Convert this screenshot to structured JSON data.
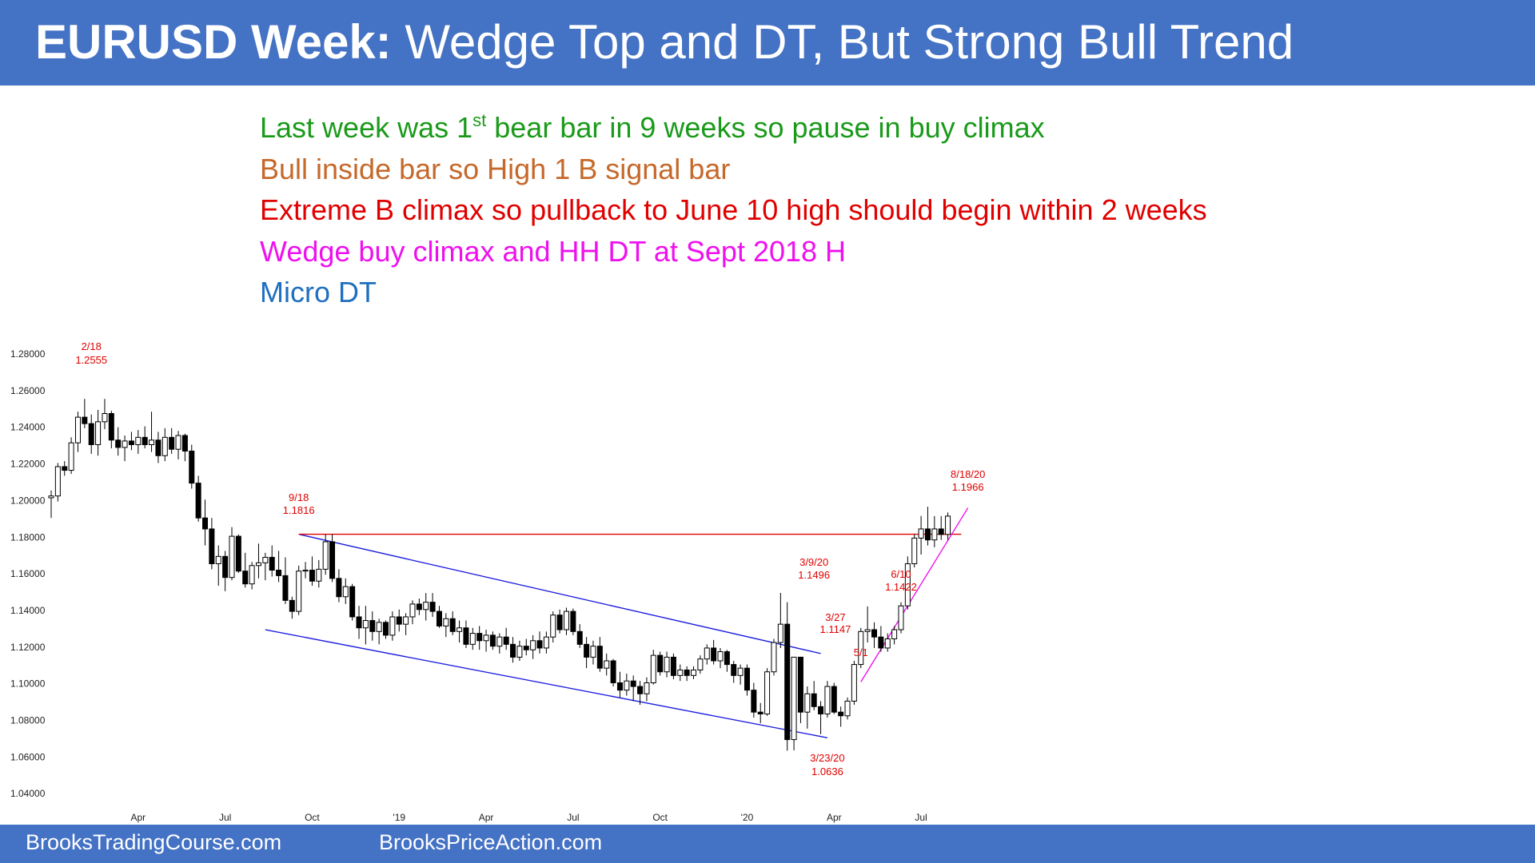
{
  "title": {
    "bold": "EURUSD Week:",
    "rest": " Wedge Top and DT, But Strong Bull Trend"
  },
  "notes": [
    {
      "text": "Last week was 1",
      "sup": "st",
      "after": " bear bar in 9 weeks so pause in buy climax",
      "color": "#1a9a1a"
    },
    {
      "text": "Bull inside bar so High 1 B signal bar",
      "color": "#c5682a"
    },
    {
      "text": "Extreme B climax so pullback to June 10 high should begin within 2 weeks",
      "color": "#e00000"
    },
    {
      "text": "Wedge buy climax and HH DT at Sept 2018 H",
      "color": "#ee11ee"
    },
    {
      "text": "Micro DT",
      "color": "#1f6fbf"
    }
  ],
  "footer": {
    "left": "BrooksTradingCourse.com",
    "right": "BrooksPriceAction.com"
  },
  "chart_data": {
    "type": "candlestick",
    "title": "",
    "x_axis": {
      "tick_labels": [
        "Apr",
        "Jul",
        "Oct",
        "'19",
        "Apr",
        "Jul",
        "Oct",
        "'20",
        "Apr",
        "Jul"
      ],
      "tick_weeks": [
        13,
        26,
        39,
        52,
        65,
        78,
        91,
        104,
        117,
        130
      ]
    },
    "y_axis": {
      "min": 1.03,
      "max": 1.285,
      "ticks": [
        "1.28000",
        "1.26000",
        "1.24000",
        "1.22000",
        "1.20000",
        "1.18000",
        "1.16000",
        "1.14000",
        "1.12000",
        "1.10000",
        "1.08000",
        "1.06000",
        "1.04000"
      ]
    },
    "annotations": [
      {
        "date": "2/18",
        "price": "1.2555",
        "week": 6,
        "value": 1.2555
      },
      {
        "date": "9/18",
        "price": "1.1816",
        "week": 37,
        "value": 1.1816
      },
      {
        "date": "3/9/20",
        "price": "1.1496",
        "week": 114,
        "value": 1.1496
      },
      {
        "date": "3/27",
        "price": "1.1147",
        "week": 116,
        "value": 1.1147
      },
      {
        "date": "5/1",
        "price": "",
        "week": 121,
        "value": 1.101
      },
      {
        "date": "6/10",
        "price": "1.1422",
        "week": 127,
        "value": 1.1422
      },
      {
        "date": "3/23/20",
        "price": "1.0636",
        "week": 116,
        "value": 1.0636
      },
      {
        "date": "8/18/20",
        "price": "1.1966",
        "week": 137,
        "value": 1.1966
      }
    ],
    "lines": [
      {
        "name": "channel-top",
        "color": "#2020e0",
        "from": [
          37,
          1.1816
        ],
        "to": [
          115,
          1.1165
        ]
      },
      {
        "name": "channel-bottom",
        "color": "#2020e0",
        "from": [
          32,
          1.1295
        ],
        "to": [
          116,
          1.0705
        ]
      },
      {
        "name": "resistance",
        "color": "#e00000",
        "from": [
          37,
          1.1816
        ],
        "to": [
          136,
          1.1816
        ]
      },
      {
        "name": "wedge-line",
        "color": "#ee11ee",
        "from": [
          121,
          1.101
        ],
        "to": [
          137,
          1.196
        ]
      }
    ],
    "candles": [
      [
        1.2015,
        1.2055,
        1.1905,
        1.2025
      ],
      [
        1.2025,
        1.2205,
        1.1995,
        1.2185
      ],
      [
        1.2185,
        1.2215,
        1.2135,
        1.2165
      ],
      [
        1.2165,
        1.2345,
        1.2145,
        1.2315
      ],
      [
        1.2315,
        1.2485,
        1.2265,
        1.2455
      ],
      [
        1.2455,
        1.2555,
        1.2395,
        1.242
      ],
      [
        1.242,
        1.247,
        1.2255,
        1.2305
      ],
      [
        1.2305,
        1.2495,
        1.2245,
        1.243
      ],
      [
        1.243,
        1.2555,
        1.239,
        1.2475
      ],
      [
        1.2475,
        1.249,
        1.2285,
        1.233
      ],
      [
        1.233,
        1.24,
        1.2245,
        1.229
      ],
      [
        1.229,
        1.2355,
        1.2215,
        1.2325
      ],
      [
        1.2325,
        1.2375,
        1.2275,
        1.2305
      ],
      [
        1.2305,
        1.2385,
        1.2255,
        1.2345
      ],
      [
        1.2345,
        1.2405,
        1.2285,
        1.2305
      ],
      [
        1.2305,
        1.2485,
        1.2265,
        1.233
      ],
      [
        1.233,
        1.2375,
        1.2205,
        1.2245
      ],
      [
        1.2245,
        1.2395,
        1.2215,
        1.2345
      ],
      [
        1.2345,
        1.2395,
        1.2255,
        1.228
      ],
      [
        1.228,
        1.238,
        1.2225,
        1.2355
      ],
      [
        1.2355,
        1.2365,
        1.2215,
        1.227
      ],
      [
        1.227,
        1.2305,
        1.2065,
        1.2095
      ],
      [
        1.2095,
        1.2135,
        1.1885,
        1.1905
      ],
      [
        1.1905,
        1.2005,
        1.1755,
        1.1845
      ],
      [
        1.1845,
        1.1905,
        1.1625,
        1.1655
      ],
      [
        1.1655,
        1.1755,
        1.1535,
        1.1695
      ],
      [
        1.1695,
        1.1725,
        1.1505,
        1.158
      ],
      [
        1.158,
        1.1855,
        1.1565,
        1.1805
      ],
      [
        1.1805,
        1.1815,
        1.1605,
        1.1615
      ],
      [
        1.1615,
        1.1715,
        1.1525,
        1.1545
      ],
      [
        1.1545,
        1.1665,
        1.1515,
        1.1645
      ],
      [
        1.1645,
        1.1765,
        1.1575,
        1.166
      ],
      [
        1.166,
        1.1715,
        1.1565,
        1.169
      ],
      [
        1.169,
        1.1755,
        1.1585,
        1.162
      ],
      [
        1.162,
        1.1725,
        1.1555,
        1.159
      ],
      [
        1.159,
        1.169,
        1.1435,
        1.1455
      ],
      [
        1.1455,
        1.1475,
        1.1355,
        1.1395
      ],
      [
        1.1395,
        1.1645,
        1.1375,
        1.1615
      ],
      [
        1.1615,
        1.1665,
        1.1575,
        1.162
      ],
      [
        1.162,
        1.1695,
        1.1535,
        1.156
      ],
      [
        1.156,
        1.1675,
        1.1525,
        1.1625
      ],
      [
        1.1625,
        1.1815,
        1.1595,
        1.1775
      ],
      [
        1.1775,
        1.1816,
        1.1555,
        1.1575
      ],
      [
        1.1575,
        1.1625,
        1.1445,
        1.1475
      ],
      [
        1.1475,
        1.1575,
        1.1435,
        1.153
      ],
      [
        1.153,
        1.1545,
        1.1345,
        1.1365
      ],
      [
        1.1365,
        1.1425,
        1.1245,
        1.1305
      ],
      [
        1.1305,
        1.1425,
        1.1215,
        1.1345
      ],
      [
        1.1345,
        1.1395,
        1.1235,
        1.1285
      ],
      [
        1.1285,
        1.1355,
        1.1215,
        1.1335
      ],
      [
        1.1335,
        1.1345,
        1.1245,
        1.1265
      ],
      [
        1.1265,
        1.1395,
        1.1235,
        1.1365
      ],
      [
        1.1365,
        1.1405,
        1.1285,
        1.1325
      ],
      [
        1.1325,
        1.1385,
        1.1265,
        1.1365
      ],
      [
        1.1365,
        1.1455,
        1.1325,
        1.1435
      ],
      [
        1.1435,
        1.1465,
        1.1375,
        1.1405
      ],
      [
        1.1405,
        1.1495,
        1.1345,
        1.1445
      ],
      [
        1.1445,
        1.1495,
        1.1365,
        1.1395
      ],
      [
        1.1395,
        1.1425,
        1.1305,
        1.1315
      ],
      [
        1.1315,
        1.1385,
        1.1255,
        1.1355
      ],
      [
        1.1355,
        1.1395,
        1.1265,
        1.1285
      ],
      [
        1.1285,
        1.1345,
        1.1225,
        1.1305
      ],
      [
        1.1305,
        1.1345,
        1.1195,
        1.1215
      ],
      [
        1.1215,
        1.1305,
        1.1185,
        1.1275
      ],
      [
        1.1275,
        1.1315,
        1.1185,
        1.1235
      ],
      [
        1.1235,
        1.1295,
        1.1175,
        1.1265
      ],
      [
        1.1265,
        1.1285,
        1.1185,
        1.1205
      ],
      [
        1.1205,
        1.1275,
        1.1165,
        1.1255
      ],
      [
        1.1255,
        1.1305,
        1.1185,
        1.1215
      ],
      [
        1.1215,
        1.1255,
        1.1115,
        1.1145
      ],
      [
        1.1145,
        1.1235,
        1.1125,
        1.1205
      ],
      [
        1.1205,
        1.1245,
        1.1155,
        1.1185
      ],
      [
        1.1185,
        1.1265,
        1.1135,
        1.1235
      ],
      [
        1.1235,
        1.1285,
        1.1165,
        1.1195
      ],
      [
        1.1195,
        1.1285,
        1.1165,
        1.1255
      ],
      [
        1.1255,
        1.1395,
        1.1225,
        1.1375
      ],
      [
        1.1375,
        1.1405,
        1.1275,
        1.1295
      ],
      [
        1.1295,
        1.1415,
        1.1265,
        1.1395
      ],
      [
        1.1395,
        1.141,
        1.1265,
        1.1285
      ],
      [
        1.1285,
        1.1325,
        1.1195,
        1.1215
      ],
      [
        1.1215,
        1.1255,
        1.1085,
        1.1145
      ],
      [
        1.1145,
        1.1235,
        1.1105,
        1.1205
      ],
      [
        1.1205,
        1.1255,
        1.1065,
        1.1085
      ],
      [
        1.1085,
        1.1165,
        1.1045,
        1.1125
      ],
      [
        1.1125,
        1.1135,
        1.0985,
        1.1005
      ],
      [
        1.1005,
        1.1065,
        1.0925,
        1.0965
      ],
      [
        1.0965,
        1.1055,
        1.0935,
        1.1015
      ],
      [
        1.1015,
        1.1045,
        1.0905,
        1.0985
      ],
      [
        1.0985,
        1.1015,
        1.0885,
        1.0945
      ],
      [
        1.0945,
        1.1035,
        1.0905,
        1.1005
      ],
      [
        1.1005,
        1.1185,
        1.0995,
        1.1155
      ],
      [
        1.1155,
        1.1175,
        1.1045,
        1.1065
      ],
      [
        1.1065,
        1.1175,
        1.1035,
        1.1145
      ],
      [
        1.1145,
        1.1165,
        1.1025,
        1.1045
      ],
      [
        1.1045,
        1.1105,
        1.1015,
        1.1075
      ],
      [
        1.1075,
        1.1095,
        1.1015,
        1.1045
      ],
      [
        1.1045,
        1.1095,
        1.1025,
        1.1075
      ],
      [
        1.1075,
        1.1155,
        1.1055,
        1.1135
      ],
      [
        1.1135,
        1.1215,
        1.1105,
        1.1195
      ],
      [
        1.1195,
        1.1239,
        1.1105,
        1.1125
      ],
      [
        1.1125,
        1.1195,
        1.1085,
        1.1175
      ],
      [
        1.1175,
        1.1185,
        1.1065,
        1.1105
      ],
      [
        1.1105,
        1.1125,
        1.1005,
        1.1045
      ],
      [
        1.1045,
        1.1105,
        1.0995,
        1.1085
      ],
      [
        1.1085,
        1.1105,
        1.0935,
        1.0965
      ],
      [
        1.0965,
        1.1005,
        1.0815,
        1.0845
      ],
      [
        1.0845,
        1.0895,
        1.0785,
        1.0835
      ],
      [
        1.0835,
        1.1085,
        1.0825,
        1.1065
      ],
      [
        1.1065,
        1.1245,
        1.1045,
        1.1225
      ],
      [
        1.1225,
        1.1496,
        1.1195,
        1.1325
      ],
      [
        1.1325,
        1.1445,
        1.0635,
        1.0695
      ],
      [
        1.0695,
        1.1147,
        1.0636,
        1.1145
      ],
      [
        1.1145,
        1.1147,
        1.0785,
        1.0845
      ],
      [
        1.0845,
        1.0985,
        1.0755,
        1.0945
      ],
      [
        1.0945,
        1.1015,
        1.0855,
        1.0875
      ],
      [
        1.0875,
        1.0905,
        1.0725,
        1.0835
      ],
      [
        1.0835,
        1.1015,
        1.0815,
        1.0985
      ],
      [
        1.0985,
        1.1005,
        1.0835,
        1.0845
      ],
      [
        1.0845,
        1.0875,
        1.0765,
        1.0825
      ],
      [
        1.0825,
        1.0925,
        1.0805,
        1.0905
      ],
      [
        1.0905,
        1.1125,
        1.0885,
        1.1105
      ],
      [
        1.1105,
        1.1305,
        1.1085,
        1.1285
      ],
      [
        1.1285,
        1.1422,
        1.1225,
        1.1295
      ],
      [
        1.1295,
        1.1335,
        1.1195,
        1.1255
      ],
      [
        1.1255,
        1.1315,
        1.1175,
        1.1195
      ],
      [
        1.1195,
        1.1275,
        1.1175,
        1.1245
      ],
      [
        1.1245,
        1.1315,
        1.1215,
        1.1295
      ],
      [
        1.1295,
        1.1445,
        1.1275,
        1.1425
      ],
      [
        1.1425,
        1.1695,
        1.1405,
        1.1655
      ],
      [
        1.1655,
        1.1815,
        1.1635,
        1.1795
      ],
      [
        1.1795,
        1.1916,
        1.1705,
        1.1845
      ],
      [
        1.1845,
        1.1966,
        1.1755,
        1.1785
      ],
      [
        1.1785,
        1.1915,
        1.1745,
        1.1845
      ],
      [
        1.1845,
        1.1915,
        1.1785,
        1.1815
      ],
      [
        1.1815,
        1.1935,
        1.1785,
        1.1915
      ]
    ]
  }
}
